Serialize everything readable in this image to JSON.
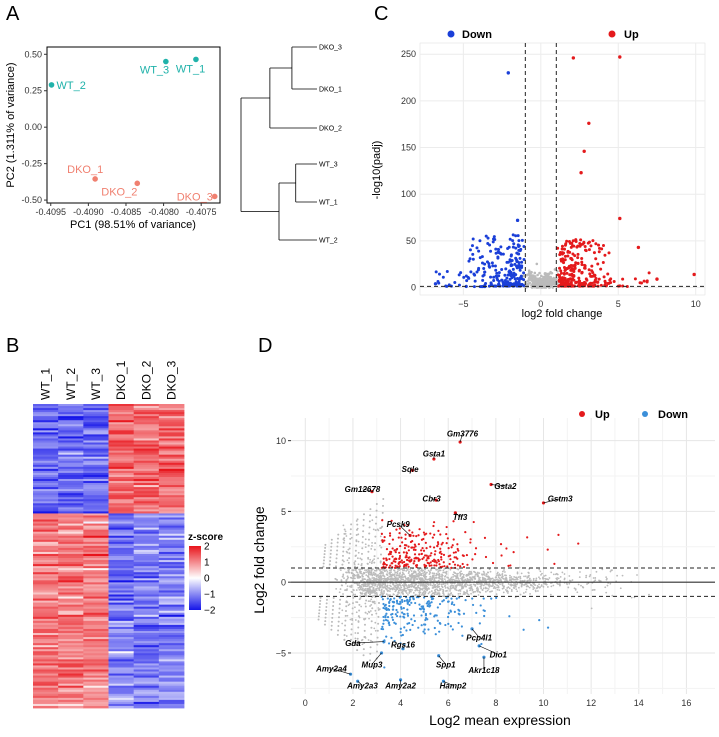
{
  "colors": {
    "wt": "#20B2AA",
    "dko": "#F08070",
    "up": "#E41A1C",
    "down": "#1A3FD8",
    "ns": "#BBBBBB",
    "down_ma": "#3B8FD9",
    "heat_high": "#E8141B",
    "heat_mid": "#FFFFFF",
    "heat_low": "#1414E8"
  },
  "panels": {
    "A": "A",
    "B": "B",
    "C": "C",
    "D": "D"
  },
  "chart_data": [
    {
      "id": "A-pca",
      "type": "scatter",
      "xlabel": "PC1 (98.51% of variance)",
      "ylabel": "PC2 (1.311% of variance)",
      "xlim": [
        -0.40955,
        -0.40725
      ],
      "ylim": [
        -0.52,
        0.55
      ],
      "xticks": [
        -0.4095,
        -0.409,
        -0.4085,
        -0.408,
        -0.4075
      ],
      "xtick_labels": [
        "-0.4095",
        "-0.4090",
        "-0.4085",
        "-0.4080",
        "-0.4075"
      ],
      "yticks": [
        0.5,
        0.25,
        0.0,
        -0.25,
        -0.5
      ],
      "ytick_labels": [
        "0.50",
        "0.25",
        "0.00",
        "-0.25",
        "-0.50"
      ],
      "points": [
        {
          "label": "WT_1",
          "x": -0.40757,
          "y": 0.465,
          "group": "wt"
        },
        {
          "label": "WT_2",
          "x": -0.40949,
          "y": 0.29,
          "group": "wt"
        },
        {
          "label": "WT_3",
          "x": -0.40797,
          "y": 0.45,
          "group": "wt"
        },
        {
          "label": "DKO_1",
          "x": -0.40891,
          "y": -0.355,
          "group": "dko"
        },
        {
          "label": "DKO_2",
          "x": -0.40835,
          "y": -0.385,
          "group": "dko"
        },
        {
          "label": "DKO_3",
          "x": -0.40732,
          "y": -0.475,
          "group": "dko"
        }
      ]
    },
    {
      "id": "A-dendrogram",
      "type": "dendrogram",
      "leaves": [
        "DKO_3",
        "DKO_1",
        "DKO_2",
        "WT_3",
        "WT_1",
        "WT_2"
      ],
      "merges": [
        {
          "a": "DKO_3",
          "b": "DKO_1",
          "height": 0.33
        },
        {
          "a": "DKO_3+DKO_1",
          "b": "DKO_2",
          "height": 0.62
        },
        {
          "a": "WT_3",
          "b": "WT_1",
          "height": 0.28
        },
        {
          "a": "WT_3+WT_1",
          "b": "WT_2",
          "height": 0.5
        },
        {
          "a": "DKO",
          "b": "WT",
          "height": 1.0
        }
      ]
    },
    {
      "id": "B-heatmap",
      "type": "heatmap",
      "columns": [
        "WT_1",
        "WT_2",
        "WT_3",
        "DKO_1",
        "DKO_2",
        "DKO_3"
      ],
      "legend_title": "z-score",
      "legend_ticks": [
        2,
        1,
        0,
        -1,
        -2
      ],
      "cluster_split_fraction": 0.36,
      "cluster_pattern": {
        "top": "WT low / DKO high",
        "bottom": "WT high / DKO low"
      }
    },
    {
      "id": "C-volcano",
      "type": "scatter",
      "xlabel": "log2 fold change",
      "ylabel": "-log10(padj)",
      "xlim": [
        -7.8,
        10.6
      ],
      "ylim": [
        -8,
        262
      ],
      "xticks": [
        -5,
        0,
        5,
        10
      ],
      "yticks": [
        0,
        50,
        100,
        150,
        200,
        250
      ],
      "vlines": [
        -1,
        1
      ],
      "hline": 1.3,
      "legend": [
        "Down",
        "Up"
      ],
      "highlighted_points": [
        {
          "x": -2.1,
          "y": 230,
          "class": "down"
        },
        {
          "x": 2.1,
          "y": 246,
          "class": "up"
        },
        {
          "x": 5.1,
          "y": 247,
          "class": "up"
        },
        {
          "x": 3.1,
          "y": 176,
          "class": "up"
        },
        {
          "x": 2.8,
          "y": 146,
          "class": "up"
        },
        {
          "x": 2.6,
          "y": 123,
          "class": "up"
        },
        {
          "x": 5.1,
          "y": 74,
          "class": "up"
        },
        {
          "x": 9.9,
          "y": 14,
          "class": "up"
        },
        {
          "x": 7.5,
          "y": 9,
          "class": "up"
        },
        {
          "x": 6.3,
          "y": 43,
          "class": "up"
        },
        {
          "x": -1.5,
          "y": 72,
          "class": "down"
        },
        {
          "x": -6.8,
          "y": 4,
          "class": "down"
        }
      ]
    },
    {
      "id": "D-ma",
      "type": "scatter",
      "xlabel": "Log2 mean expression",
      "ylabel": "Log2 fold change",
      "xlim": [
        -0.6,
        17.2
      ],
      "ylim": [
        -7.9,
        11.6
      ],
      "xticks": [
        0,
        2,
        4,
        6,
        8,
        10,
        12,
        14,
        16
      ],
      "yticks": [
        10,
        5,
        0,
        -5
      ],
      "hlines": [
        1,
        -1
      ],
      "legend": [
        "Up",
        "Down"
      ],
      "labeled_genes": [
        {
          "gene": "Gm3776",
          "x": 6.5,
          "y": 9.9,
          "lx": 6.6,
          "ly": 10.5
        },
        {
          "gene": "Gsta1",
          "x": 5.4,
          "y": 8.7,
          "lx": 5.4,
          "ly": 9.1
        },
        {
          "gene": "Sqle",
          "x": 4.5,
          "y": 7.9,
          "lx": 4.4,
          "ly": 8.0
        },
        {
          "gene": "Gm12678",
          "x": 2.8,
          "y": 6.4,
          "lx": 2.4,
          "ly": 6.6
        },
        {
          "gene": "Gsta2",
          "x": 7.8,
          "y": 6.9,
          "lx": 8.4,
          "ly": 6.8
        },
        {
          "gene": "Gstm3",
          "x": 10.0,
          "y": 5.6,
          "lx": 10.7,
          "ly": 5.9
        },
        {
          "gene": "Cbr3",
          "x": 5.5,
          "y": 5.8,
          "lx": 5.3,
          "ly": 5.9
        },
        {
          "gene": "Tff3",
          "x": 6.3,
          "y": 4.9,
          "lx": 6.5,
          "ly": 4.6
        },
        {
          "gene": "Pcsk9",
          "x": 4.4,
          "y": 3.3,
          "lx": 3.9,
          "ly": 4.1
        },
        {
          "gene": "Gda",
          "x": 3.3,
          "y": -4.2,
          "lx": 2.0,
          "ly": -4.3
        },
        {
          "gene": "Rgs16",
          "x": 4.1,
          "y": -4.7,
          "lx": 4.1,
          "ly": -4.4
        },
        {
          "gene": "Pcp4l1",
          "x": 7.0,
          "y": -3.3,
          "lx": 7.3,
          "ly": -3.9
        },
        {
          "gene": "Dio1",
          "x": 7.3,
          "y": -4.5,
          "lx": 8.1,
          "ly": -5.1
        },
        {
          "gene": "Mup3",
          "x": 3.2,
          "y": -5.0,
          "lx": 2.8,
          "ly": -5.8
        },
        {
          "gene": "Spp1",
          "x": 5.6,
          "y": -5.2,
          "lx": 5.9,
          "ly": -5.8
        },
        {
          "gene": "Amy2a4",
          "x": 1.9,
          "y": -6.5,
          "lx": 1.1,
          "ly": -6.1
        },
        {
          "gene": "Akr1c18",
          "x": 7.5,
          "y": -5.3,
          "lx": 7.5,
          "ly": -6.2
        },
        {
          "gene": "Amy2a3",
          "x": 2.2,
          "y": -7.0,
          "lx": 2.4,
          "ly": -7.3
        },
        {
          "gene": "Amy2a2",
          "x": 4.0,
          "y": -6.9,
          "lx": 4.0,
          "ly": -7.3
        },
        {
          "gene": "Hamp2",
          "x": 5.8,
          "y": -7.0,
          "lx": 6.2,
          "ly": -7.3
        }
      ]
    }
  ]
}
